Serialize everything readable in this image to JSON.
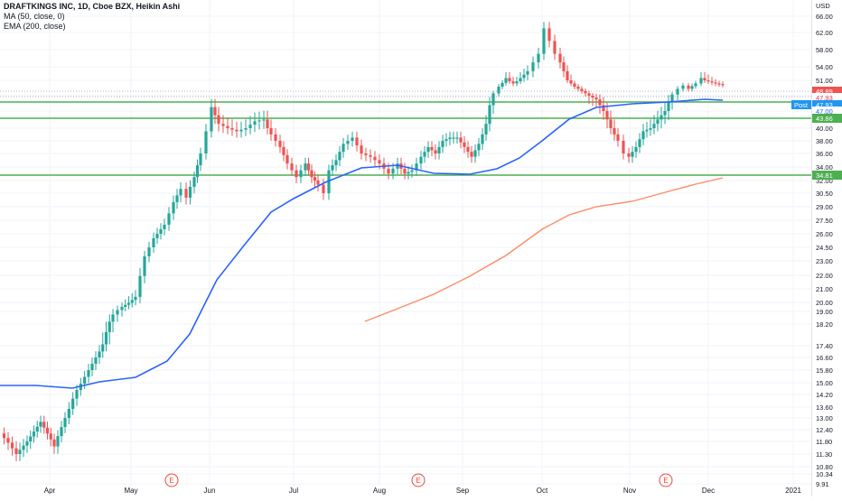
{
  "header": {
    "title": "DRAFTKINGS INC, 1D, Cboe BZX, Heikin Ashi",
    "ma_label": "MA (50, close, 0)",
    "ema_label": "EMA (200, close)"
  },
  "axis": {
    "currency": "USD",
    "ticks": [
      "66.00",
      "62.00",
      "58.00",
      "54.00",
      "51.00",
      "44.00",
      "42.00",
      "40.00",
      "38.00",
      "36.00",
      "34.00",
      "32.00",
      "30.50",
      "29.00",
      "27.50",
      "26.00",
      "24.50",
      "23.00",
      "22.00",
      "21.00",
      "20.00",
      "19.00",
      "18.20",
      "17.40",
      "16.60",
      "15.80",
      "15.00",
      "14.20",
      "13.60",
      "13.00",
      "12.40",
      "11.80",
      "11.30",
      "10.80",
      "10.34",
      "9.91"
    ],
    "months": [
      "Apr",
      "May",
      "Jun",
      "Jul",
      "Aug",
      "Sep",
      "Oct",
      "Nov",
      "Dec",
      "2021"
    ],
    "earnings_marker": "E"
  },
  "price_tags": {
    "last_close": "48.89",
    "second": "47.93",
    "post_label": "Post",
    "post_value": "47.93",
    "ma_value": "47.00",
    "line_43": "43.86",
    "line_34": "34.81"
  },
  "colors": {
    "up": "#26a69a",
    "down": "#ef5350",
    "ma": "#2962ff",
    "ema": "#ff8a65",
    "hline": "#4caf50",
    "grid": "#f0f3fa",
    "post_bg": "#2196f3"
  },
  "chart_data": {
    "type": "candlestick",
    "title": "DRAFTKINGS INC, 1D, Cboe BZX, Heikin Ashi",
    "yscale": "log",
    "ylim": [
      9.91,
      66.0
    ],
    "horizontal_lines": [
      47.93,
      43.86,
      34.81
    ],
    "ma_50": [
      {
        "x": "Mar",
        "y": 14.9
      },
      {
        "x": "Apr",
        "y": 14.8
      },
      {
        "x": "May",
        "y": 16.0
      },
      {
        "x": "Jun",
        "y": 22.5
      },
      {
        "x": "Jul",
        "y": 31.0
      },
      {
        "x": "Aug",
        "y": 36.5
      },
      {
        "x": "Sep",
        "y": 35.0
      },
      {
        "x": "Oct",
        "y": 42.5
      },
      {
        "x": "Nov",
        "y": 46.0
      },
      {
        "x": "Dec",
        "y": 47.9
      }
    ],
    "ema_200": [
      {
        "x": "Aug",
        "y": 19.5
      },
      {
        "x": "Sep",
        "y": 25.0
      },
      {
        "x": "Oct",
        "y": 29.8
      },
      {
        "x": "Nov",
        "y": 32.0
      },
      {
        "x": "Dec",
        "y": 34.8
      }
    ]
  }
}
